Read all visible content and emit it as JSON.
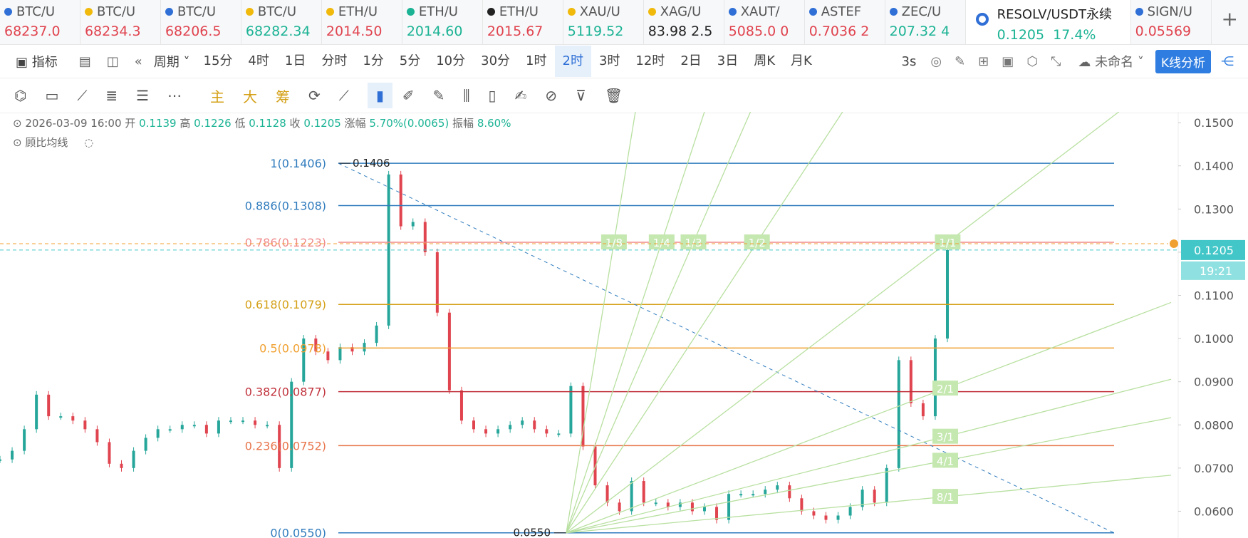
{
  "tabs_left": [
    {
      "symbol": "BTC/U",
      "price": "68237.0",
      "color": "#e0444f",
      "icon": "#2f6fd6"
    },
    {
      "symbol": "BTC/U",
      "price": "68234.3",
      "color": "#e0444f",
      "icon": "#f0b90b"
    },
    {
      "symbol": "BTC/U",
      "price": "68206.5",
      "color": "#e0444f",
      "icon": "#2f6fd6"
    },
    {
      "symbol": "BTC/U",
      "price": "68282.34",
      "color": "#1bb394",
      "icon": "#f0b90b"
    },
    {
      "symbol": "ETH/U",
      "price": "2014.50",
      "color": "#e0444f",
      "icon": "#f0b90b"
    },
    {
      "symbol": "ETH/U",
      "price": "2014.60",
      "color": "#1bb394",
      "icon": "#1bb394"
    },
    {
      "symbol": "ETH/U",
      "price": "2015.67",
      "color": "#e0444f",
      "icon": "#222222"
    },
    {
      "symbol": "XAU/U",
      "price": "5119.52",
      "color": "#1bb394",
      "icon": "#f0b90b"
    },
    {
      "symbol": "XAG/U",
      "price": "83.98 2.5",
      "color": "#222222",
      "icon": "#f0b90b"
    },
    {
      "symbol": "XAUT/",
      "price": "5085.0 0",
      "color": "#e0444f",
      "icon": "#2f6fd6"
    },
    {
      "symbol": "ASTEF",
      "price": "0.7036 2",
      "color": "#e0444f",
      "icon": "#2f6fd6"
    },
    {
      "symbol": "ZEC/U",
      "price": "207.32 4",
      "color": "#1bb394",
      "icon": "#2f6fd6"
    }
  ],
  "active_tab": {
    "symbol": "RESOLV/USDT永续",
    "price": "0.1205",
    "change": "17.4%",
    "color": "#1bb394"
  },
  "tabs_right": [
    {
      "symbol": "SIGN/U",
      "price": "0.05569",
      "color": "#e0444f",
      "icon": "#2f6fd6"
    }
  ],
  "toolbar": {
    "indicator": "指标",
    "period": "周期",
    "intervals": [
      "15分",
      "4时",
      "1日",
      "分时",
      "1分",
      "5分",
      "10分",
      "30分",
      "1时",
      "2时",
      "3时",
      "12时",
      "2日",
      "3日",
      "周K",
      "月K"
    ],
    "active_interval": "2时",
    "refresh": "3s",
    "layout_name": "未命名",
    "analysis_button": "K线分析"
  },
  "tools": {
    "main": "主",
    "big": "大",
    "chips": "筹"
  },
  "info": {
    "datetime": "2026-03-09 16:00",
    "open_label": "开",
    "open": "0.1139",
    "high_label": "高",
    "high": "0.1226",
    "low_label": "低",
    "low": "0.1128",
    "close_label": "收",
    "close": "0.1205",
    "change_label": "涨幅",
    "change": "5.70%(0.0065)",
    "amplitude_label": "振幅",
    "amplitude": "8.60%",
    "indicator": "顾比均线"
  },
  "chart": {
    "ylim": [
      0.0538,
      0.1525
    ],
    "yticks": [
      {
        "value": 0.15,
        "label": "0.1500"
      },
      {
        "value": 0.14,
        "label": "0.1400"
      },
      {
        "value": 0.13,
        "label": "0.1300"
      },
      {
        "value": 0.12,
        "label": "0.1200"
      },
      {
        "value": 0.11,
        "label": "0.1100"
      },
      {
        "value": 0.1,
        "label": "0.1000"
      },
      {
        "value": 0.09,
        "label": "0.0900"
      },
      {
        "value": 0.08,
        "label": "0.0800"
      },
      {
        "value": 0.07,
        "label": "0.0700"
      },
      {
        "value": 0.06,
        "label": "0.0600"
      }
    ],
    "closes": [
      0.072,
      0.074,
      0.079,
      0.087,
      0.082,
      0.082,
      0.081,
      0.079,
      0.076,
      0.071,
      0.07,
      0.074,
      0.077,
      0.079,
      0.079,
      0.08,
      0.08,
      0.078,
      0.081,
      0.081,
      0.081,
      0.08,
      0.08,
      0.07,
      0.09,
      0.1,
      0.097,
      0.095,
      0.098,
      0.097,
      0.099,
      0.103,
      0.138,
      0.126,
      0.127,
      0.12,
      0.106,
      0.088,
      0.081,
      0.079,
      0.078,
      0.079,
      0.08,
      0.081,
      0.079,
      0.078,
      0.078,
      0.089,
      0.075,
      0.066,
      0.062,
      0.06,
      0.067,
      0.062,
      0.062,
      0.061,
      0.062,
      0.06,
      0.061,
      0.058,
      0.064,
      0.064,
      0.064,
      0.065,
      0.066,
      0.063,
      0.06,
      0.059,
      0.058,
      0.059,
      0.061,
      0.065,
      0.062,
      0.07,
      0.095,
      0.085,
      0.082,
      0.1,
      0.1205
    ],
    "fib_levels": [
      {
        "label": "1(0.1406)",
        "price": 0.1406,
        "color": "#2f7bbd"
      },
      {
        "label": "0.886(0.1308)",
        "price": 0.1308,
        "color": "#2f7bbd"
      },
      {
        "label": "0.786(0.1223)",
        "price": 0.1223,
        "color": "#f08a8a"
      },
      {
        "label": "0.618(0.1079)",
        "price": 0.1079,
        "color": "#d4a017"
      },
      {
        "label": "0.5(0.0978)",
        "price": 0.0978,
        "color": "#f0a030"
      },
      {
        "label": "0.382(0.0877)",
        "price": 0.0877,
        "color": "#c0303a"
      },
      {
        "label": "0.236(0.0752)",
        "price": 0.0752,
        "color": "#e8744a"
      },
      {
        "label": "0(0.0550)",
        "price": 0.055,
        "color": "#2f7bbd"
      }
    ],
    "high_marker": {
      "label": "0.1406",
      "price": 0.1406
    },
    "low_marker": {
      "label": "0.0550",
      "price": 0.055
    },
    "last_price": {
      "label": "0.1205",
      "price": 0.1205
    },
    "countdown": "19:21",
    "gann_labels": [
      "1/8",
      "1/4",
      "1/3",
      "1/2",
      "1/1",
      "2/1",
      "3/1",
      "4/1",
      "8/1"
    ]
  }
}
